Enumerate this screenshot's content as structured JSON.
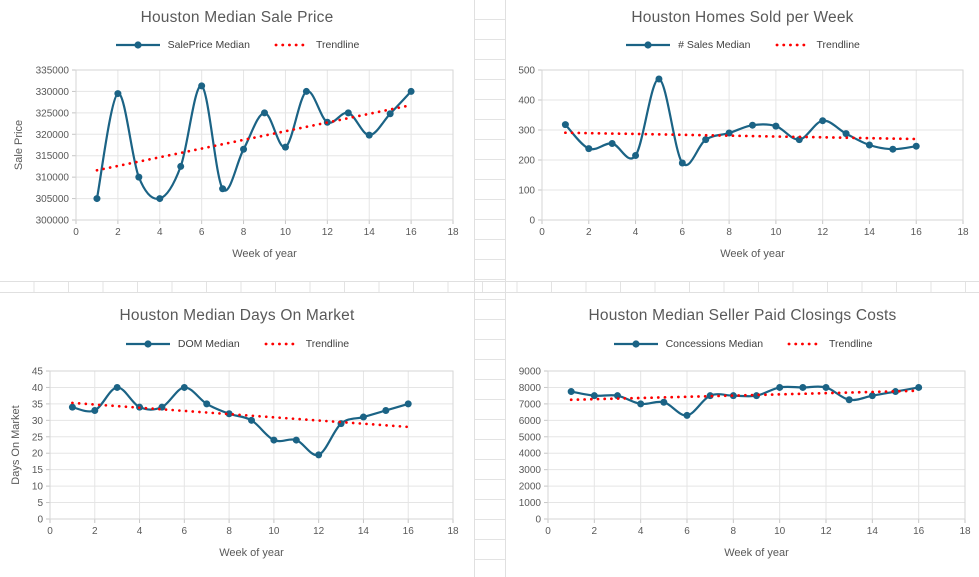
{
  "style": {
    "series_color": "#1b6385",
    "trend_color": "#fe0000",
    "text_color": "#595959",
    "grid_color": "#e5e5e5",
    "plot_border_color": "#d6d6d6",
    "tick_color": "#c6c6c6",
    "sheet_grid_color": "#e3e3e3"
  },
  "chart_data": [
    {
      "type": "line",
      "title": "Houston Median Sale Price",
      "series_label": "SalePrice Median",
      "trendline_label": "Trendline",
      "xlabel": "Week of year",
      "ylabel": "Sale Price",
      "x": [
        1,
        2,
        3,
        4,
        5,
        6,
        7,
        8,
        9,
        10,
        11,
        12,
        13,
        14,
        15,
        16
      ],
      "values": [
        305000,
        329500,
        310000,
        305000,
        312500,
        331300,
        307300,
        316500,
        325000,
        317000,
        330000,
        322800,
        325000,
        319800,
        324800,
        330000
      ],
      "trendline": {
        "x_start": 1,
        "y_start": 311600,
        "x_end": 16,
        "y_end": 326800
      },
      "xlim": [
        0,
        18
      ],
      "xtick_step": 2,
      "ylim": [
        300000,
        335000
      ],
      "ytick_step": 5000,
      "grid": true,
      "legend_position": "top",
      "smooth": true
    },
    {
      "type": "line",
      "title": "Houston Homes Sold per Week",
      "series_label": "# Sales Median",
      "trendline_label": "Trendline",
      "xlabel": "Week of year",
      "ylabel": "",
      "x": [
        1,
        2,
        3,
        4,
        5,
        6,
        7,
        8,
        9,
        10,
        11,
        12,
        13,
        14,
        15,
        16
      ],
      "values": [
        318,
        238,
        255,
        215,
        470,
        190,
        268,
        290,
        316,
        313,
        268,
        331,
        288,
        250,
        236,
        246
      ],
      "trendline": {
        "x_start": 1,
        "y_start": 291,
        "x_end": 16,
        "y_end": 270
      },
      "xlim": [
        0,
        18
      ],
      "xtick_step": 2,
      "ylim": [
        0,
        500
      ],
      "ytick_step": 100,
      "grid": true,
      "legend_position": "top",
      "smooth": true
    },
    {
      "type": "line",
      "title": "Houston Median Days On Market",
      "series_label": "DOM Median",
      "trendline_label": "Trendline",
      "xlabel": "Week of year",
      "ylabel": "Days On Market",
      "x": [
        1,
        2,
        3,
        4,
        5,
        6,
        7,
        8,
        9,
        10,
        11,
        12,
        13,
        14,
        15,
        16
      ],
      "values": [
        34,
        33,
        40,
        34,
        34,
        40,
        35,
        32,
        30,
        24,
        24,
        19.5,
        29,
        31,
        33,
        35
      ],
      "trendline": {
        "x_start": 1,
        "y_start": 35.3,
        "x_end": 16,
        "y_end": 28
      },
      "xlim": [
        0,
        18
      ],
      "xtick_step": 2,
      "ylim": [
        0,
        45
      ],
      "ytick_step": 5,
      "grid": true,
      "legend_position": "top",
      "smooth": true
    },
    {
      "type": "line",
      "title": "Houston Median Seller Paid Closings Costs",
      "series_label": "Concessions Median",
      "trendline_label": "Trendline",
      "xlabel": "Week of year",
      "ylabel": "",
      "x": [
        1,
        2,
        3,
        4,
        5,
        6,
        7,
        8,
        9,
        10,
        11,
        12,
        13,
        14,
        15,
        16
      ],
      "values": [
        7750,
        7500,
        7500,
        7000,
        7100,
        6300,
        7500,
        7500,
        7500,
        8000,
        8000,
        8000,
        7250,
        7500,
        7750,
        8000
      ],
      "trendline": {
        "x_start": 1,
        "y_start": 7250,
        "x_end": 16,
        "y_end": 7800
      },
      "xlim": [
        0,
        18
      ],
      "xtick_step": 2,
      "ylim": [
        0,
        9000
      ],
      "ytick_step": 1000,
      "grid": true,
      "legend_position": "top",
      "smooth": true
    }
  ]
}
